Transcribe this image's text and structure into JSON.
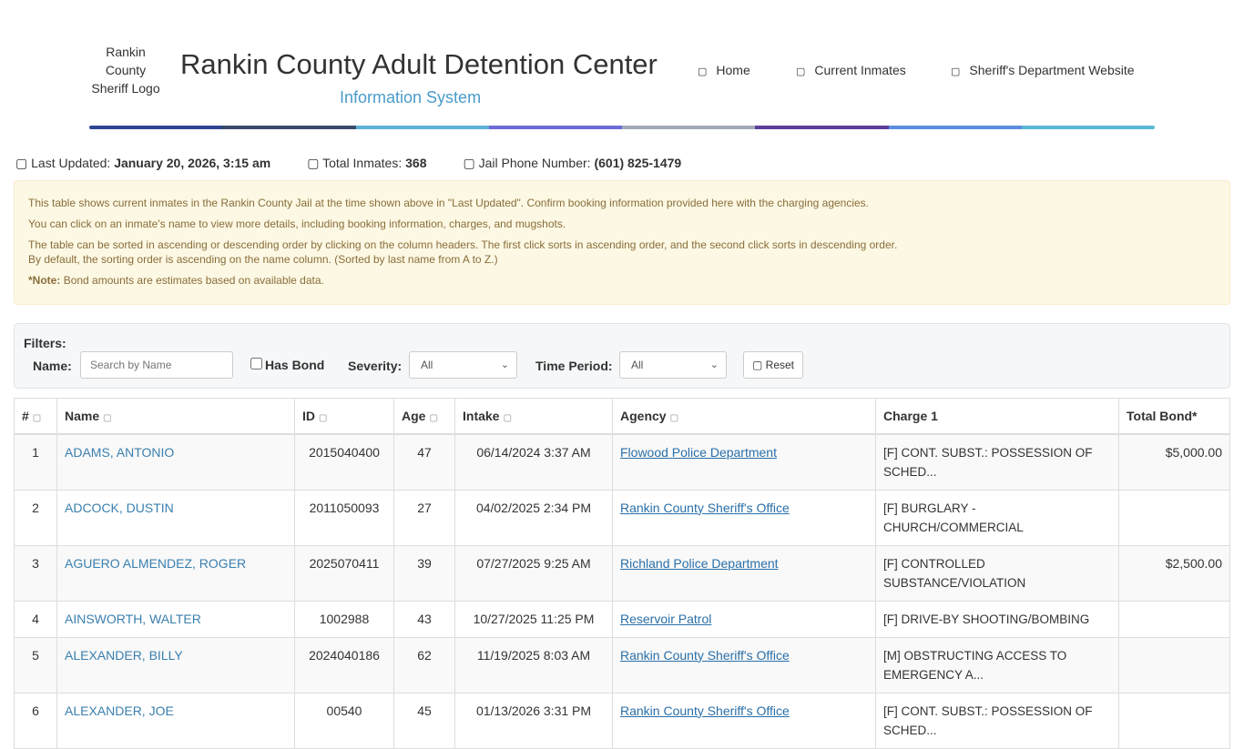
{
  "header": {
    "logo_alt": "Rankin County Sheriff Logo",
    "title": "Rankin County Adult Detention Center",
    "subtitle": "Information System",
    "nav": [
      {
        "label": "Home",
        "icon": "home-icon"
      },
      {
        "label": "Current Inmates",
        "icon": "users-icon"
      },
      {
        "label": "Sheriff's Department Website",
        "icon": "external-link-icon"
      }
    ],
    "stripe_colors": [
      "#2f4593",
      "#3a4a6a",
      "#5fb0d8",
      "#6e6ad8",
      "#a0a8b8",
      "#5a3e9a",
      "#5b8ee0",
      "#5ab8d6"
    ]
  },
  "info": {
    "last_updated_label": "Last Updated:",
    "last_updated": "January 20, 2026, 3:15 am",
    "total_label": "Total Inmates:",
    "total": "368",
    "phone_label": "Jail Phone Number:",
    "phone": "(601) 825-1479"
  },
  "alert": {
    "p1": "This table shows current inmates in the Rankin County Jail at the time shown above in \"Last Updated\". Confirm booking information provided here with the charging agencies.",
    "p2": "You can click on an inmate's name to view more details, including booking information, charges, and mugshots.",
    "p3": "The table can be sorted in ascending or descending order by clicking on the column headers. The first click sorts in ascending order, and the second click sorts in descending order.",
    "p4": "By default, the sorting order is ascending on the name column. (Sorted by last name from A to Z.)",
    "note_label": "*Note:",
    "note": "Bond amounts are estimates based on available data."
  },
  "filters": {
    "title": "Filters:",
    "name_label": "Name:",
    "name_placeholder": "Search by Name",
    "has_bond_label": "Has Bond",
    "severity_label": "Severity:",
    "severity_value": "All",
    "time_label": "Time Period:",
    "time_value": "All",
    "reset_label": "Reset"
  },
  "table": {
    "headers": [
      "#",
      "Name",
      "ID",
      "Age",
      "Intake",
      "Agency",
      "Charge 1",
      "Total Bond*"
    ],
    "rows": [
      [
        "1",
        "ADAMS, ANTONIO",
        "2015040400",
        "47",
        "06/14/2024 3:37 AM",
        "Flowood Police Department",
        "[F] CONT. SUBST.: POSSESSION OF SCHED...",
        "$5,000.00"
      ],
      [
        "2",
        "ADCOCK, DUSTIN",
        "2011050093",
        "27",
        "04/02/2025 2:34 PM",
        "Rankin County Sheriff's Office",
        "[F] BURGLARY - CHURCH/COMMERCIAL",
        ""
      ],
      [
        "3",
        "AGUERO ALMENDEZ, ROGER",
        "2025070411",
        "39",
        "07/27/2025 9:25 AM",
        "Richland Police Department",
        "[F] CONTROLLED SUBSTANCE/VIOLATION",
        "$2,500.00"
      ],
      [
        "4",
        "AINSWORTH, WALTER",
        "1002988",
        "43",
        "10/27/2025 11:25 PM",
        "Reservoir Patrol",
        "[F] DRIVE-BY SHOOTING/BOMBING",
        ""
      ],
      [
        "5",
        "ALEXANDER, BILLY",
        "2024040186",
        "62",
        "11/19/2025 8:03 AM",
        "Rankin County Sheriff's Office",
        "[M] OBSTRUCTING ACCESS TO EMERGENCY A...",
        ""
      ],
      [
        "6",
        "ALEXANDER, JOE",
        "00540",
        "45",
        "01/13/2026 3:31 PM",
        "Rankin County Sheriff's Office",
        "[F] CONT. SUBST.: POSSESSION OF SCHED...",
        ""
      ]
    ]
  }
}
